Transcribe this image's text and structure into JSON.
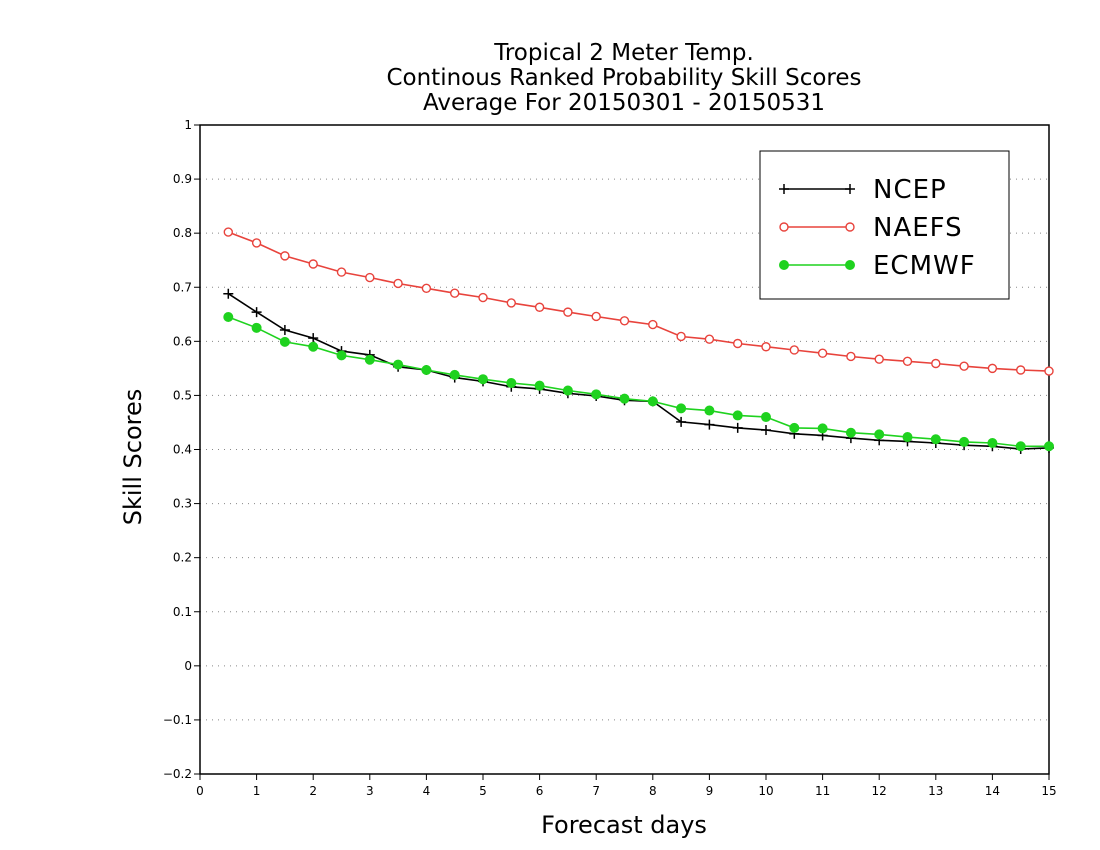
{
  "chart_data": {
    "type": "line",
    "title": [
      "Tropical 2 Meter Temp.",
      "Continous Ranked Probability Skill Scores",
      "Average For 20150301 - 20150531"
    ],
    "xlabel": "Forecast days",
    "ylabel": "Skill Scores",
    "xlim": [
      0,
      15
    ],
    "ylim": [
      -0.2,
      1
    ],
    "xticks": [
      "0",
      "1",
      "2",
      "3",
      "4",
      "5",
      "6",
      "7",
      "8",
      "9",
      "10",
      "11",
      "12",
      "13",
      "14",
      "15"
    ],
    "yticks": [
      "−0.2",
      "−0.1",
      "0",
      "0.1",
      "0.2",
      "0.3",
      "0.4",
      "0.5",
      "0.6",
      "0.7",
      "0.8",
      "0.9",
      "1"
    ],
    "grid": "horizontal dotted",
    "legend_position": "top-right",
    "x": [
      0.5,
      1,
      1.5,
      2,
      2.5,
      3,
      3.5,
      4,
      4.5,
      5,
      5.5,
      6,
      6.5,
      7,
      7.5,
      8,
      8.5,
      9,
      9.5,
      10,
      10.5,
      11,
      11.5,
      12,
      12.5,
      13,
      13.5,
      14,
      14.5,
      15
    ],
    "series": [
      {
        "name": "NCEP",
        "color": "#000000",
        "marker": "plus",
        "values": [
          0.688,
          0.654,
          0.621,
          0.606,
          0.582,
          0.575,
          0.553,
          0.547,
          0.533,
          0.526,
          0.516,
          0.512,
          0.504,
          0.499,
          0.491,
          0.489,
          0.451,
          0.446,
          0.44,
          0.436,
          0.429,
          0.426,
          0.421,
          0.417,
          0.415,
          0.412,
          0.408,
          0.406,
          0.401,
          0.403
        ]
      },
      {
        "name": "NAEFS",
        "color": "#e8433c",
        "marker": "open-circle",
        "values": [
          0.802,
          0.782,
          0.758,
          0.743,
          0.728,
          0.718,
          0.707,
          0.698,
          0.689,
          0.681,
          0.671,
          0.663,
          0.654,
          0.646,
          0.638,
          0.631,
          0.609,
          0.604,
          0.596,
          0.59,
          0.584,
          0.578,
          0.572,
          0.567,
          0.563,
          0.559,
          0.554,
          0.55,
          0.547,
          0.545
        ]
      },
      {
        "name": "ECMWF",
        "color": "#1fd21f",
        "marker": "filled-circle",
        "values": [
          0.645,
          0.625,
          0.599,
          0.59,
          0.574,
          0.566,
          0.557,
          0.547,
          0.538,
          0.53,
          0.523,
          0.518,
          0.509,
          0.502,
          0.494,
          0.489,
          0.476,
          0.472,
          0.463,
          0.46,
          0.44,
          0.439,
          0.431,
          0.428,
          0.423,
          0.419,
          0.414,
          0.412,
          0.406,
          0.406
        ]
      }
    ]
  }
}
